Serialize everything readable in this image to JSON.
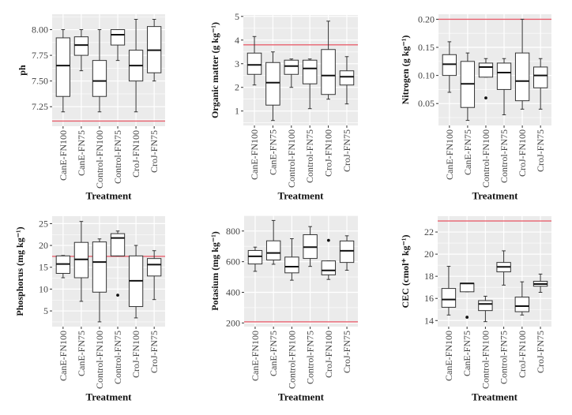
{
  "figure": {
    "panel_count": 6,
    "colors": {
      "panel_background": "#EBEBEB",
      "grid": "#FFFFFF",
      "box_stroke": "#333333",
      "box_fill": "#FFFFFF",
      "outlier": "#111111",
      "reference_line": "#E8606E"
    }
  },
  "chart_data": [
    {
      "id": "ph",
      "type": "box",
      "title": "",
      "ylabel": "ph",
      "xlabel": "Treatment",
      "categories": [
        "CanE-FN100",
        "CanE-FN75",
        "Control-FN100",
        "Control-FN75",
        "CroJ-FN100",
        "CroJ-FN75"
      ],
      "ylim": [
        7.06,
        8.15
      ],
      "yticks": [
        7.25,
        7.5,
        7.75,
        8.0
      ],
      "ytick_labels": [
        "7.25",
        "7.50",
        "7.75",
        "8.00"
      ],
      "grid": true,
      "reference_line": 7.11,
      "boxes": [
        {
          "min": 7.2,
          "q1": 7.35,
          "median": 7.65,
          "q3": 7.92,
          "max": 8.0,
          "outliers": []
        },
        {
          "min": 7.6,
          "q1": 7.75,
          "median": 7.85,
          "q3": 7.93,
          "max": 8.0,
          "outliers": []
        },
        {
          "min": 7.2,
          "q1": 7.35,
          "median": 7.5,
          "q3": 7.7,
          "max": 8.0,
          "outliers": []
        },
        {
          "min": 7.7,
          "q1": 7.85,
          "median": 7.95,
          "q3": 8.0,
          "max": 8.0,
          "outliers": []
        },
        {
          "min": 7.2,
          "q1": 7.5,
          "median": 7.65,
          "q3": 7.8,
          "max": 8.1,
          "outliers": []
        },
        {
          "min": 7.5,
          "q1": 7.58,
          "median": 7.8,
          "q3": 8.03,
          "max": 8.1,
          "outliers": []
        }
      ]
    },
    {
      "id": "organic-matter",
      "type": "box",
      "title": "",
      "ylabel": "Organic matter (g kg⁻¹)",
      "xlabel": "Treatment",
      "categories": [
        "CanE-FN100",
        "CanE-FN75",
        "Control-FN100",
        "Control-FN75",
        "CroJ-FN100",
        "CroJ-FN75"
      ],
      "ylim": [
        0.39,
        5.06
      ],
      "yticks": [
        1,
        2,
        3,
        4,
        5
      ],
      "ytick_labels": [
        "1",
        "2",
        "3",
        "4",
        "5"
      ],
      "grid": true,
      "reference_line": 3.8,
      "boxes": [
        {
          "min": 2.1,
          "q1": 2.55,
          "median": 2.95,
          "q3": 3.45,
          "max": 4.15,
          "outliers": []
        },
        {
          "min": 0.6,
          "q1": 1.25,
          "median": 2.2,
          "q3": 3.05,
          "max": 3.5,
          "outliers": []
        },
        {
          "min": 2.0,
          "q1": 2.55,
          "median": 2.9,
          "q3": 3.15,
          "max": 3.2,
          "outliers": []
        },
        {
          "min": 1.1,
          "q1": 2.15,
          "median": 2.8,
          "q3": 3.15,
          "max": 3.2,
          "outliers": []
        },
        {
          "min": 1.5,
          "q1": 1.7,
          "median": 2.5,
          "q3": 3.6,
          "max": 4.8,
          "outliers": []
        },
        {
          "min": 1.3,
          "q1": 2.1,
          "median": 2.45,
          "q3": 2.7,
          "max": 3.3,
          "outliers": []
        }
      ]
    },
    {
      "id": "nitrogen",
      "type": "box",
      "title": "",
      "ylabel": "Nitrogen (g kg⁻¹)",
      "xlabel": "Treatment",
      "categories": [
        "CanE-FN100",
        "CanE-FN75",
        "Control-FN100",
        "Control-FN75",
        "CroJ-FN100",
        "CroJ-FN75"
      ],
      "ylim": [
        0.011,
        0.209
      ],
      "yticks": [
        0.05,
        0.1,
        0.15,
        0.2
      ],
      "ytick_labels": [
        "0.05",
        "0.10",
        "0.15",
        "0.20"
      ],
      "grid": true,
      "reference_line": 0.2,
      "boxes": [
        {
          "min": 0.07,
          "q1": 0.1,
          "median": 0.12,
          "q3": 0.137,
          "max": 0.16,
          "outliers": []
        },
        {
          "min": 0.02,
          "q1": 0.043,
          "median": 0.085,
          "q3": 0.125,
          "max": 0.14,
          "outliers": []
        },
        {
          "min": 0.097,
          "q1": 0.097,
          "median": 0.115,
          "q3": 0.122,
          "max": 0.13,
          "outliers": [
            0.06
          ]
        },
        {
          "min": 0.03,
          "q1": 0.075,
          "median": 0.105,
          "q3": 0.122,
          "max": 0.13,
          "outliers": []
        },
        {
          "min": 0.04,
          "q1": 0.055,
          "median": 0.09,
          "q3": 0.14,
          "max": 0.2,
          "outliers": []
        },
        {
          "min": 0.04,
          "q1": 0.078,
          "median": 0.1,
          "q3": 0.115,
          "max": 0.13,
          "outliers": []
        }
      ]
    },
    {
      "id": "phosphorus",
      "type": "box",
      "title": "",
      "ylabel": "Phosphorus (mg kg⁻¹)",
      "xlabel": "Treatment",
      "categories": [
        "CanE-FN100",
        "CanE-FN75",
        "Control-FN100",
        "Control-FN75",
        "CroJ-FN100",
        "CroJ-FN75"
      ],
      "ylim": [
        1.4,
        26.7
      ],
      "yticks": [
        5,
        10,
        15,
        20,
        25
      ],
      "ytick_labels": [
        "5",
        "10",
        "15",
        "20",
        "25"
      ],
      "grid": true,
      "reference_line": 17.5,
      "boxes": [
        {
          "min": 12.6,
          "q1": 13.6,
          "median": 15.75,
          "q3": 17.6,
          "max": 17.7,
          "outliers": []
        },
        {
          "min": 7.2,
          "q1": 12.6,
          "median": 16.8,
          "q3": 20.7,
          "max": 25.5,
          "outliers": []
        },
        {
          "min": 2.5,
          "q1": 9.3,
          "median": 16.2,
          "q3": 20.8,
          "max": 21.5,
          "outliers": []
        },
        {
          "min": 17.6,
          "q1": 17.6,
          "median": 21.7,
          "q3": 22.7,
          "max": 23.3,
          "outliers": [
            8.6
          ]
        },
        {
          "min": 3.4,
          "q1": 6.0,
          "median": 11.9,
          "q3": 17.6,
          "max": 20.0,
          "outliers": []
        },
        {
          "min": 7.6,
          "q1": 13.0,
          "median": 15.6,
          "q3": 17.0,
          "max": 18.8,
          "outliers": []
        }
      ]
    },
    {
      "id": "potassium",
      "type": "box",
      "title": "",
      "ylabel": "Potasium (mg kg⁻¹)",
      "xlabel": "Treatment",
      "categories": [
        "CanE-FN100",
        "CanE-FN75",
        "Control-FN100",
        "Control-FN75",
        "CroJ-FN100",
        "CroJ-FN75"
      ],
      "ylim": [
        176,
        902
      ],
      "yticks": [
        200,
        400,
        600,
        800
      ],
      "ytick_labels": [
        "200",
        "400",
        "600",
        "800"
      ],
      "grid": true,
      "reference_line": 207,
      "boxes": [
        {
          "min": 537,
          "q1": 585,
          "median": 635,
          "q3": 673,
          "max": 695,
          "outliers": []
        },
        {
          "min": 583,
          "q1": 611,
          "median": 657,
          "q3": 736,
          "max": 869,
          "outliers": []
        },
        {
          "min": 479,
          "q1": 527,
          "median": 567,
          "q3": 630,
          "max": 750,
          "outliers": []
        },
        {
          "min": 569,
          "q1": 621,
          "median": 695,
          "q3": 776,
          "max": 829,
          "outliers": []
        },
        {
          "min": 484,
          "q1": 514,
          "median": 543,
          "q3": 605,
          "max": 605,
          "outliers": [
            739
          ]
        },
        {
          "min": 544,
          "q1": 595,
          "median": 671,
          "q3": 735,
          "max": 769,
          "outliers": []
        }
      ]
    },
    {
      "id": "cec",
      "type": "box",
      "title": "",
      "ylabel": "CEC (cmol⁺ kg⁻¹)",
      "xlabel": "Treatment",
      "categories": [
        "CanE-FN100",
        "CanE-FN75",
        "Control-FN100",
        "Control-FN75",
        "CroJ-FN100",
        "CroJ-FN75"
      ],
      "ylim": [
        13.45,
        23.43
      ],
      "yticks": [
        14,
        16,
        18,
        20,
        22
      ],
      "ytick_labels": [
        "14",
        "16",
        "18",
        "20",
        "22"
      ],
      "grid": true,
      "reference_line": 23.0,
      "boxes": [
        {
          "min": 14.5,
          "q1": 15.2,
          "median": 15.9,
          "q3": 16.9,
          "max": 18.9,
          "outliers": []
        },
        {
          "min": 16.6,
          "q1": 16.6,
          "median": 17.35,
          "q3": 17.37,
          "max": 17.37,
          "outliers": [
            14.3
          ]
        },
        {
          "min": 13.9,
          "q1": 14.9,
          "median": 15.5,
          "q3": 15.8,
          "max": 16.2,
          "outliers": []
        },
        {
          "min": 17.2,
          "q1": 18.4,
          "median": 18.85,
          "q3": 19.25,
          "max": 20.3,
          "outliers": []
        },
        {
          "min": 14.5,
          "q1": 14.8,
          "median": 15.3,
          "q3": 16.12,
          "max": 17.5,
          "outliers": []
        },
        {
          "min": 16.55,
          "q1": 17.1,
          "median": 17.3,
          "q3": 17.55,
          "max": 18.2,
          "outliers": []
        }
      ]
    }
  ]
}
